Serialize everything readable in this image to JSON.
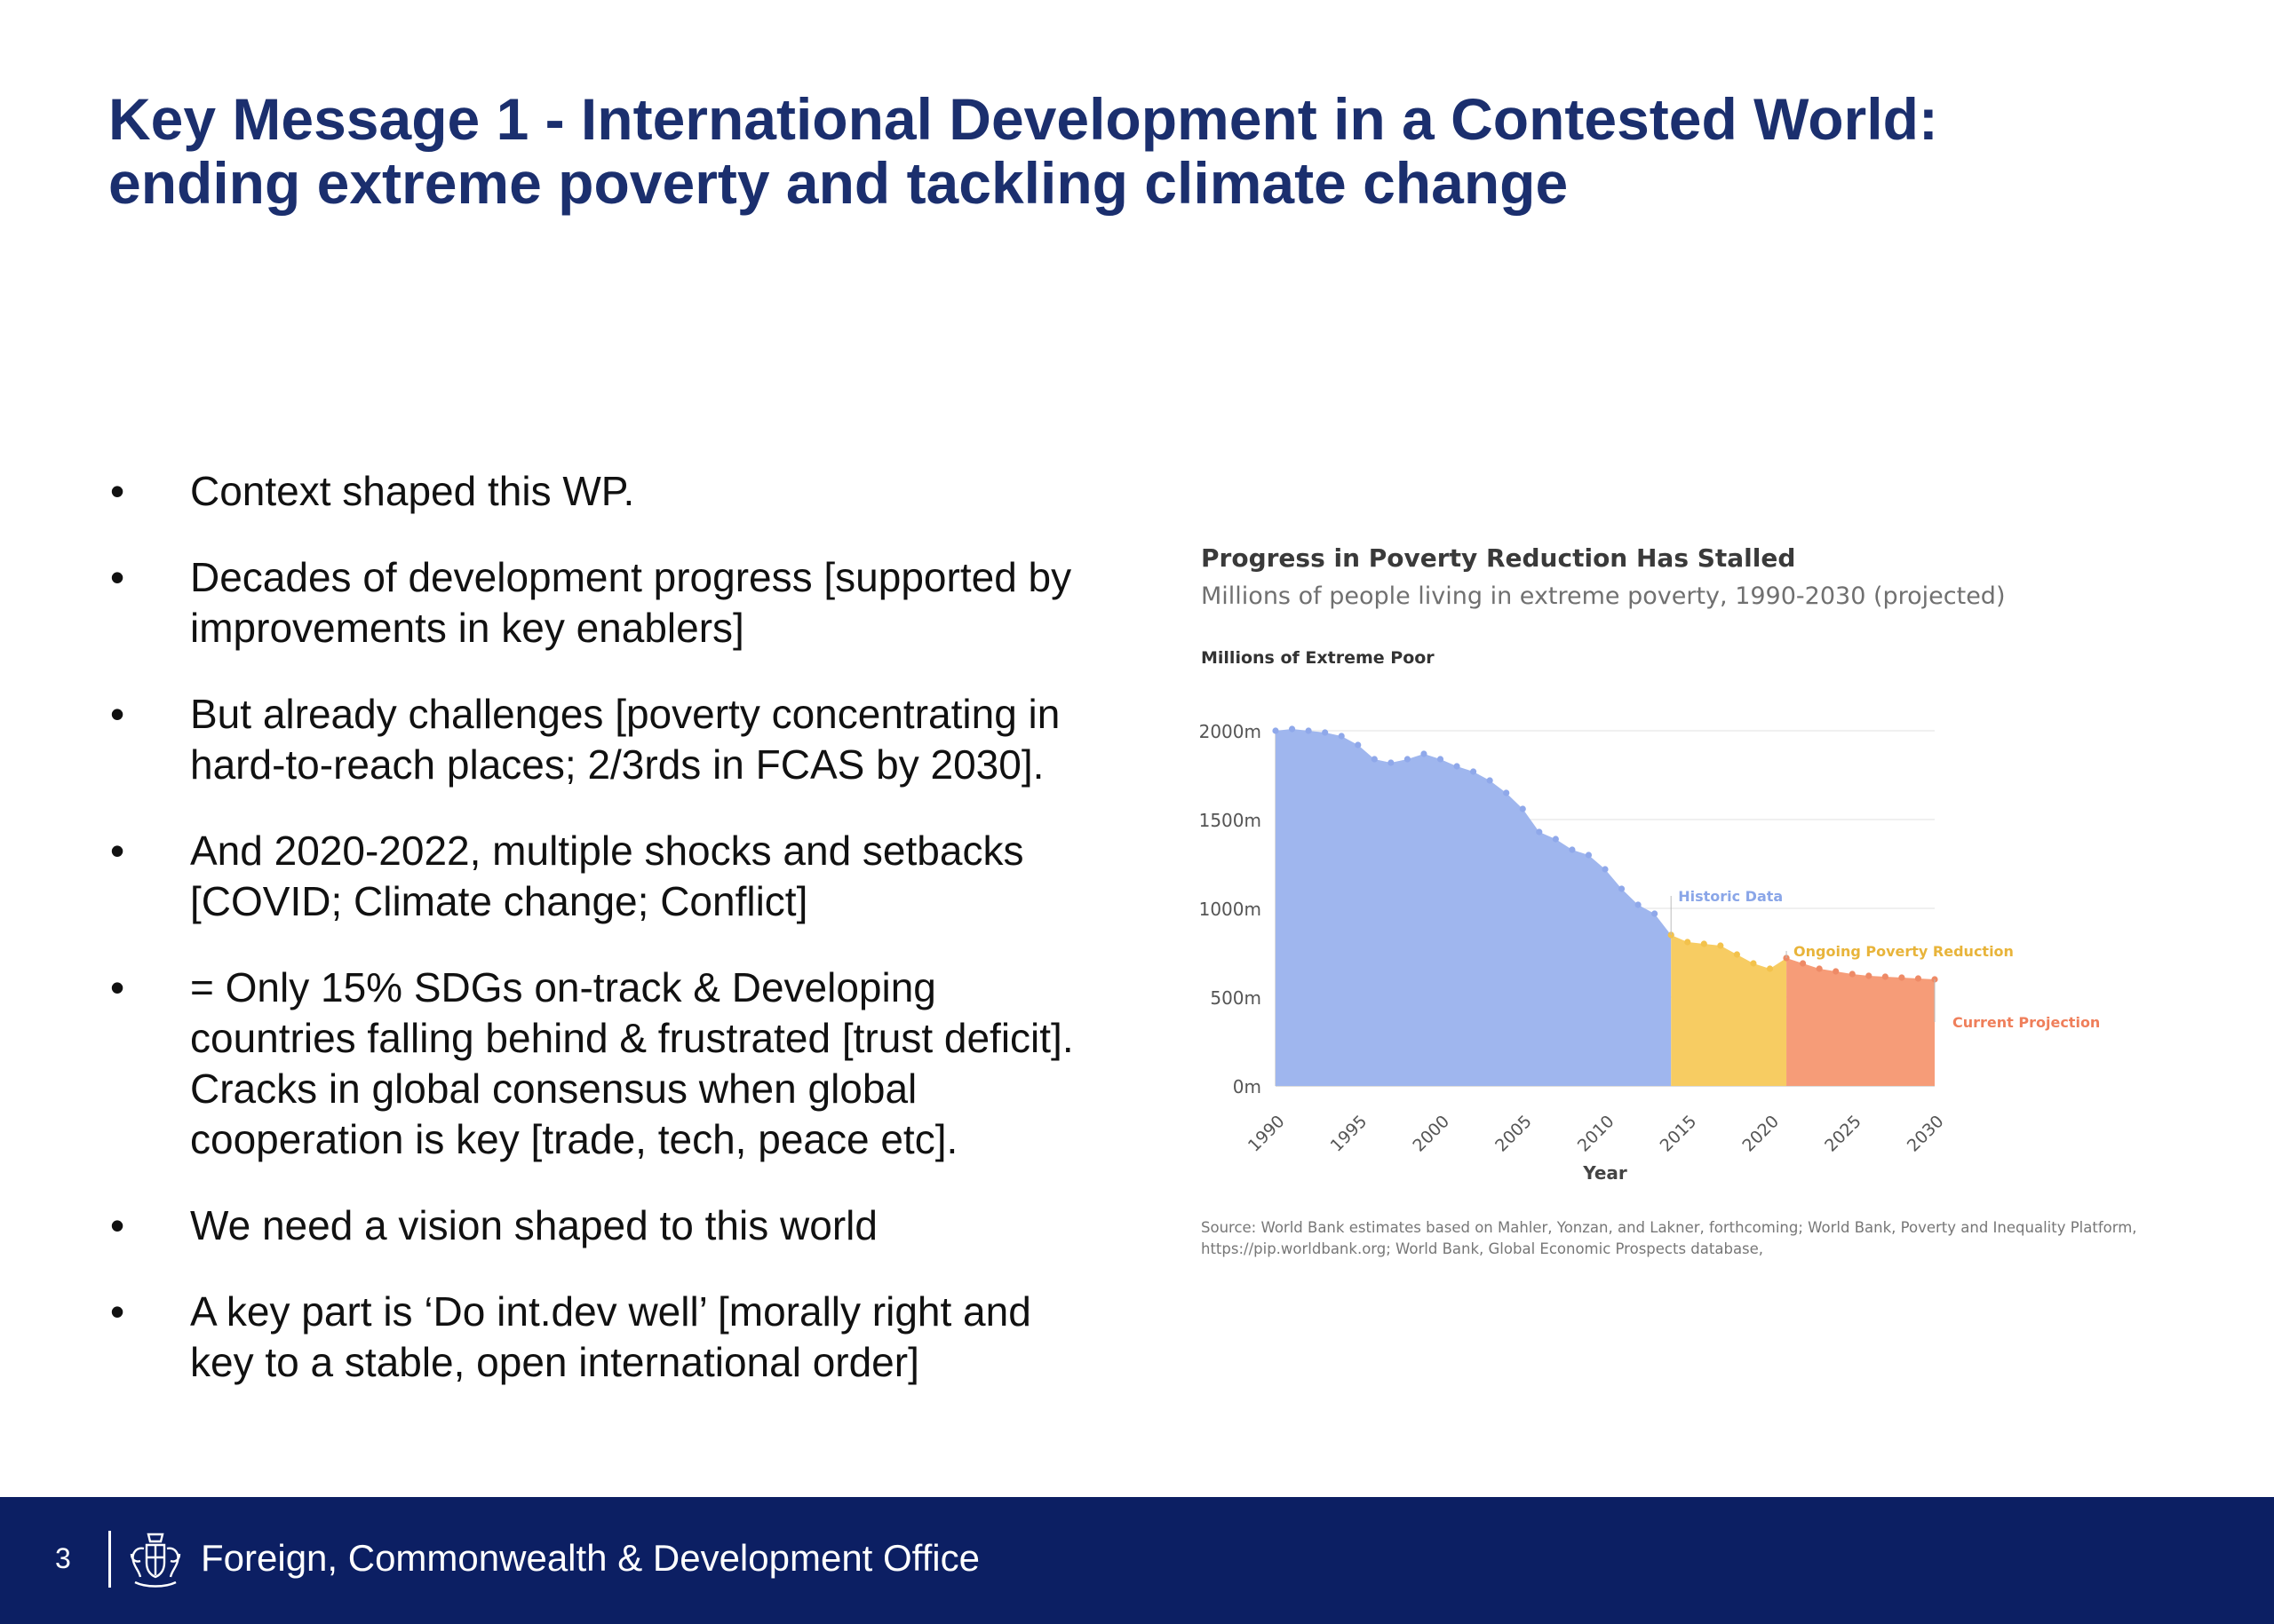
{
  "slide": {
    "title_line1": "Key Message 1 - International Development in a Contested World:",
    "title_line2": "ending extreme poverty and tackling climate change",
    "bullets": [
      [
        "Context shaped this WP."
      ],
      [
        "Decades of development progress [supported by",
        "improvements in key enablers]"
      ],
      [
        "But already challenges [poverty concentrating in",
        "hard-to-reach places; 2/3rds in FCAS by 2030]."
      ],
      [
        "And 2020-2022, multiple shocks and setbacks",
        "[COVID; Climate change; Conflict]"
      ],
      [
        "= Only 15% SDGs on-track & Developing",
        "countries falling behind & frustrated [trust deficit].",
        "Cracks in global consensus when global",
        "cooperation is key [trade, tech, peace etc]."
      ],
      [
        "We need a vision shaped to this world"
      ],
      [
        "A key part is ‘Do int.dev well’ [morally right and",
        "key to a stable, open international order]"
      ]
    ],
    "bullet_glyph": "•"
  },
  "footer": {
    "page_number": "3",
    "organisation": "Foreign, Commonwealth & Development Office",
    "crest_icon": "royal-coat-of-arms-icon"
  },
  "chart_data": {
    "type": "area",
    "title": "Progress in Poverty Reduction Has Stalled",
    "subtitle": "Millions of people living in extreme poverty, 1990-2030 (projected)",
    "ylabel": "Millions of Extreme Poor",
    "xlabel": "Year",
    "ylim": [
      0,
      2000
    ],
    "xlim": [
      1990,
      2030
    ],
    "y_ticks": [
      0,
      500,
      1000,
      1500,
      2000
    ],
    "y_tick_labels": [
      "0m",
      "500m",
      "1000m",
      "1500m",
      "2000m"
    ],
    "x_ticks": [
      "1990",
      "1995",
      "2000",
      "2005",
      "2010",
      "2015",
      "2020",
      "2025",
      "2030"
    ],
    "grid": true,
    "series": [
      {
        "name": "Historic Data",
        "color": "#9fb6ee",
        "x": [
          1990,
          1991,
          1992,
          1993,
          1994,
          1995,
          1996,
          1997,
          1998,
          1999,
          2000,
          2001,
          2002,
          2003,
          2004,
          2005,
          2006,
          2007,
          2008,
          2009,
          2010,
          2011,
          2012,
          2013,
          2014
        ],
        "values": [
          2000,
          2010,
          2000,
          1990,
          1970,
          1920,
          1840,
          1820,
          1840,
          1870,
          1840,
          1800,
          1770,
          1720,
          1650,
          1560,
          1430,
          1390,
          1330,
          1300,
          1220,
          1110,
          1020,
          970,
          850
        ]
      },
      {
        "name": "Ongoing Poverty Reduction",
        "color": "#f7cc62",
        "x": [
          2014,
          2015,
          2016,
          2017,
          2018,
          2019,
          2020,
          2021
        ],
        "values": [
          850,
          810,
          800,
          790,
          740,
          690,
          660,
          720
        ]
      },
      {
        "name": "Current Projection",
        "color": "#f69c78",
        "x": [
          2021,
          2022,
          2023,
          2024,
          2025,
          2026,
          2027,
          2028,
          2029,
          2030
        ],
        "values": [
          720,
          690,
          660,
          645,
          630,
          620,
          615,
          610,
          605,
          600
        ]
      }
    ],
    "source_line1": "Source: World Bank estimates based on Mahler, Yonzan, and Lakner, forthcoming; World Bank, Poverty and Inequality Platform,",
    "source_line2": "https://pip.worldbank.org; World Bank, Global Economic Prospects database,"
  }
}
